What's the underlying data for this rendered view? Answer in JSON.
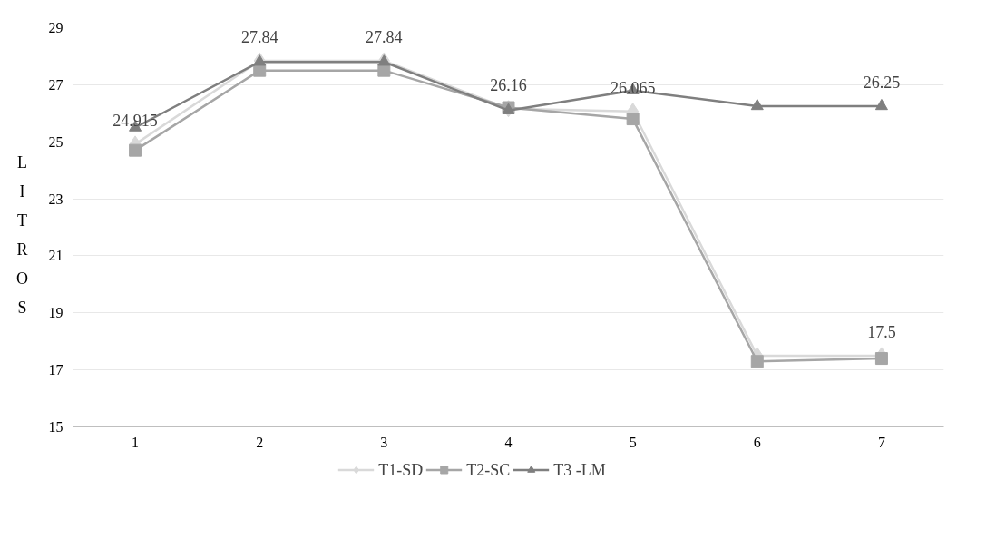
{
  "chart_data": {
    "type": "line",
    "ylabel": "LITROS",
    "categories": [
      "1",
      "2",
      "3",
      "4",
      "5",
      "6",
      "7"
    ],
    "series": [
      {
        "name": "T1-SD",
        "color": "#d9d9d9",
        "marker": "diamond",
        "values": [
          24.915,
          27.84,
          27.84,
          26.16,
          26.065,
          17.5,
          17.5
        ],
        "value_labels": [
          "24.915",
          "27.84",
          "27.84",
          "26.16",
          "26.065",
          null,
          "17.5"
        ]
      },
      {
        "name": "T2-SC",
        "color": "#a6a6a6",
        "marker": "square",
        "values": [
          24.7,
          27.5,
          27.5,
          26.2,
          25.8,
          17.3,
          17.4
        ]
      },
      {
        "name": "T3 -LM",
        "color": "#7f7f7f",
        "marker": "triangle",
        "values": [
          25.5,
          27.8,
          27.8,
          26.1,
          26.8,
          26.25,
          26.25
        ],
        "value_labels": [
          null,
          null,
          null,
          null,
          null,
          null,
          "26.25"
        ]
      }
    ],
    "ylim": [
      15,
      29
    ],
    "yticks": [
      15,
      17,
      19,
      21,
      23,
      25,
      27,
      29
    ],
    "grid": "y",
    "legend": "bottom"
  }
}
